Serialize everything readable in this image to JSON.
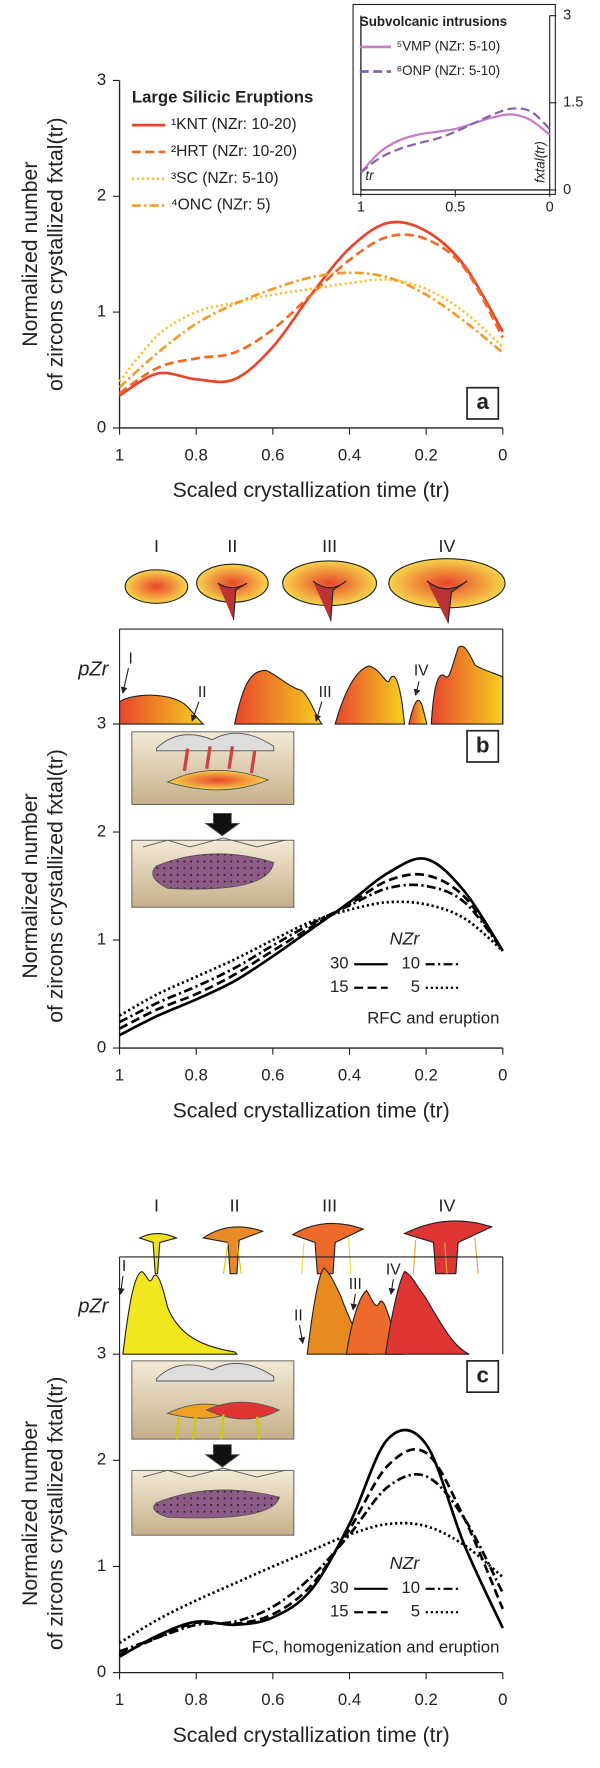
{
  "chart_data": [
    {
      "type": "line",
      "ylabel": [
        "Normalized number",
        "of zircons crystallized fxtal(tr)"
      ],
      "xlabel": "Scaled crystallization time (tr)",
      "panel_label": "a",
      "legend_title": "Large Silicic Eruptions",
      "x": [
        1,
        0.9,
        0.8,
        0.7,
        0.6,
        0.5,
        0.4,
        0.3,
        0.2,
        0.1,
        0
      ],
      "xlim": [
        1,
        0
      ],
      "xticks": [
        1,
        0.8,
        0.6,
        0.4,
        0.2,
        0
      ],
      "ylim": [
        0,
        3
      ],
      "yticks": [
        0,
        1,
        2,
        3
      ],
      "series": [
        {
          "name": "¹KNT (NZr: 10-20)",
          "color": "#e8452c",
          "dash": "solid",
          "values": [
            0.28,
            0.47,
            0.42,
            0.42,
            0.7,
            1.15,
            1.55,
            1.77,
            1.7,
            1.4,
            0.83
          ]
        },
        {
          "name": "²HRT (NZr: 10-20)",
          "color": "#f06a26",
          "dash": "dashed",
          "values": [
            0.3,
            0.52,
            0.6,
            0.65,
            0.85,
            1.15,
            1.45,
            1.65,
            1.63,
            1.38,
            0.78
          ]
        },
        {
          "name": "³SC (NZr: 5-10)",
          "color": "#f7c23a",
          "dash": "dotted",
          "values": [
            0.4,
            0.8,
            1.0,
            1.08,
            1.15,
            1.2,
            1.25,
            1.28,
            1.2,
            1.0,
            0.7
          ]
        },
        {
          "name": "⁴ONC (NZr: 5)",
          "color": "#f39a27",
          "dash": "dashdot",
          "values": [
            0.35,
            0.65,
            0.9,
            1.07,
            1.2,
            1.3,
            1.34,
            1.3,
            1.15,
            0.92,
            0.65
          ]
        }
      ]
    },
    {
      "type": "line",
      "title": "Subvolcanic intrusions",
      "annotations": [
        "tr",
        "fxtal(tr)"
      ],
      "x": [
        1,
        0.9,
        0.8,
        0.7,
        0.6,
        0.5,
        0.4,
        0.3,
        0.2,
        0.1,
        0
      ],
      "xlim": [
        1,
        0
      ],
      "xticks": [
        1,
        0.5,
        0
      ],
      "ylim": [
        0,
        3
      ],
      "yticks": [
        0,
        1.5,
        3
      ],
      "series": [
        {
          "name": "⁵VMP (NZr: 5-10)",
          "color": "#c77dc4",
          "dash": "solid",
          "values": [
            0.3,
            0.65,
            0.85,
            0.95,
            1.0,
            1.05,
            1.15,
            1.25,
            1.3,
            1.2,
            0.95
          ]
        },
        {
          "name": "⁶ONP (NZr: 5-10)",
          "color": "#8a62ad",
          "dash": "dashed",
          "values": [
            0.3,
            0.55,
            0.7,
            0.8,
            0.88,
            1.0,
            1.15,
            1.3,
            1.4,
            1.35,
            1.05
          ]
        }
      ]
    },
    {
      "type": "line",
      "ylabel": [
        "Normalized number",
        "of zircons crystallized fxtal(tr)"
      ],
      "xlabel": "Scaled crystallization time (tr)",
      "panel_label": "b",
      "legend_title": "NZr",
      "annotations": [
        "RFC and eruption"
      ],
      "stage_labels": [
        "I",
        "II",
        "III",
        "IV"
      ],
      "profile_label": "pZr",
      "profile_markers": [
        "I",
        "II",
        "III",
        "IV"
      ],
      "x": [
        1,
        0.9,
        0.8,
        0.7,
        0.6,
        0.5,
        0.4,
        0.3,
        0.2,
        0.1,
        0
      ],
      "xlim": [
        1,
        0
      ],
      "xticks": [
        1,
        0.8,
        0.6,
        0.4,
        0.2,
        0
      ],
      "ylim": [
        0,
        3
      ],
      "yticks": [
        0,
        1,
        2,
        3
      ],
      "series": [
        {
          "name": "30",
          "color": "#000000",
          "dash": "solid",
          "values": [
            0.12,
            0.3,
            0.45,
            0.62,
            0.85,
            1.1,
            1.35,
            1.62,
            1.75,
            1.45,
            0.9
          ]
        },
        {
          "name": "15",
          "color": "#000000",
          "dash": "dashed",
          "values": [
            0.18,
            0.36,
            0.5,
            0.68,
            0.9,
            1.12,
            1.33,
            1.55,
            1.6,
            1.4,
            0.9
          ]
        },
        {
          "name": "10",
          "color": "#000000",
          "dash": "dashdot",
          "values": [
            0.24,
            0.42,
            0.57,
            0.74,
            0.95,
            1.15,
            1.32,
            1.48,
            1.5,
            1.35,
            0.9
          ]
        },
        {
          "name": "5",
          "color": "#000000",
          "dash": "dotted",
          "values": [
            0.3,
            0.5,
            0.66,
            0.82,
            1.0,
            1.17,
            1.28,
            1.35,
            1.33,
            1.2,
            0.9
          ]
        }
      ]
    },
    {
      "type": "line",
      "ylabel": [
        "Normalized number",
        "of zircons crystallized fxtal(tr)"
      ],
      "xlabel": "Scaled crystallization time (tr)",
      "panel_label": "c",
      "legend_title": "NZr",
      "annotations": [
        "FC, homogenization and eruption"
      ],
      "stage_labels": [
        "I",
        "II",
        "III",
        "IV"
      ],
      "profile_label": "pZr",
      "profile_markers": [
        "I",
        "II",
        "III",
        "IV"
      ],
      "x": [
        1,
        0.9,
        0.8,
        0.7,
        0.6,
        0.5,
        0.4,
        0.3,
        0.2,
        0.1,
        0
      ],
      "xlim": [
        1,
        0
      ],
      "xticks": [
        1,
        0.8,
        0.6,
        0.4,
        0.2,
        0
      ],
      "ylim": [
        0,
        3
      ],
      "yticks": [
        0,
        1,
        2,
        3
      ],
      "series": [
        {
          "name": "30",
          "color": "#000000",
          "dash": "solid",
          "values": [
            0.15,
            0.35,
            0.48,
            0.45,
            0.52,
            0.78,
            1.4,
            2.2,
            2.15,
            1.2,
            0.42
          ]
        },
        {
          "name": "15",
          "color": "#000000",
          "dash": "dashed",
          "values": [
            0.17,
            0.33,
            0.47,
            0.46,
            0.55,
            0.82,
            1.35,
            1.95,
            2.07,
            1.45,
            0.6
          ]
        },
        {
          "name": "10",
          "color": "#000000",
          "dash": "dashdot",
          "values": [
            0.2,
            0.33,
            0.45,
            0.48,
            0.62,
            0.9,
            1.3,
            1.75,
            1.85,
            1.45,
            0.75
          ]
        },
        {
          "name": "5",
          "color": "#000000",
          "dash": "dotted",
          "values": [
            0.28,
            0.5,
            0.68,
            0.84,
            1.0,
            1.15,
            1.3,
            1.4,
            1.38,
            1.2,
            0.9
          ]
        }
      ]
    }
  ]
}
